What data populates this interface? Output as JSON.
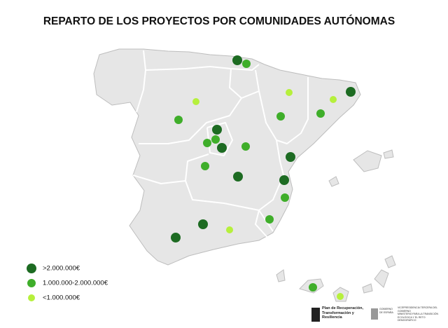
{
  "title": "REPARTO DE LOS PROYECTOS POR COMUNIDADES AUTÓNOMAS",
  "legend": [
    {
      "label": ">2.000.000€",
      "color": "#1d6b22"
    },
    {
      "label": "1.000.000-2.000.000€",
      "color": "#3fae2a"
    },
    {
      "label": "<1.000.000€",
      "color": "#b6f03c"
    }
  ],
  "footer": {
    "plan": "Plan de Recuperación, Transformación y Resiliencia",
    "gobierno": "GOBIERNO DE ESPAÑA",
    "vicepresidencia": "VICEPRESIDENCIA TERCERA DEL GOBIERNO",
    "ministerio": "MINISTERIO PARA LA TRANSICIÓN ECOLÓGICA Y EL RETO DEMOGRÁFICO"
  }
}
